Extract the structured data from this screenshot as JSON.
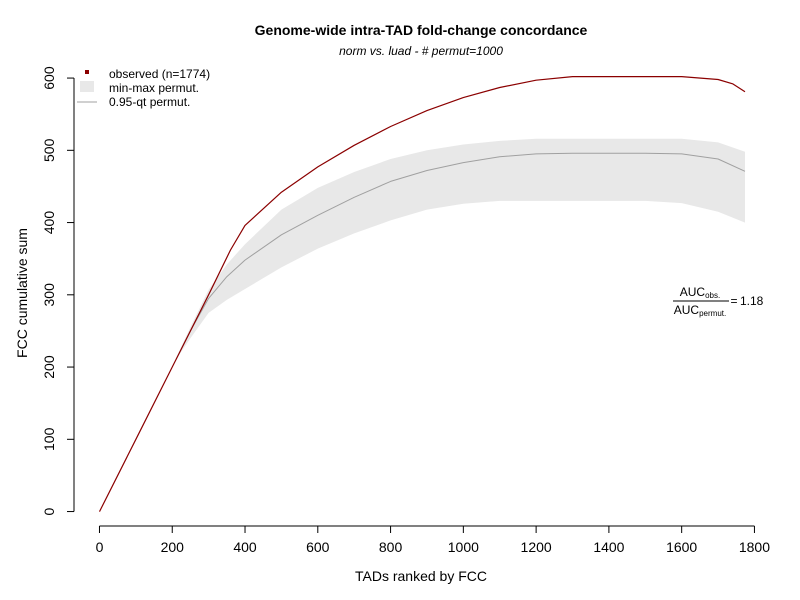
{
  "chart_data": {
    "type": "line",
    "title": "Genome-wide intra-TAD fold-change concordance",
    "subtitle": "norm vs. luad - # permut=1000",
    "xlabel": "TADs ranked by FCC",
    "ylabel": "FCC cumulative sum",
    "xlim": [
      -70,
      1840
    ],
    "ylim": [
      -20,
      625
    ],
    "xticks": [
      0,
      200,
      400,
      600,
      800,
      1000,
      1200,
      1400,
      1600,
      1800
    ],
    "yticks": [
      0,
      100,
      200,
      300,
      400,
      500,
      600
    ],
    "grid": false,
    "legend": {
      "position": "top-left",
      "entries": [
        "observed (n=1774)",
        "min-max permut.",
        "0.95-qt permut."
      ]
    },
    "colors": {
      "observed": "#8b0000",
      "band": "#e8e8e8",
      "quantile": "#a0a0a0"
    },
    "series": [
      {
        "name": "observed (n=1774)",
        "x": [
          0,
          100,
          200,
          300,
          360,
          400,
          500,
          600,
          700,
          800,
          900,
          1000,
          1100,
          1200,
          1300,
          1400,
          1500,
          1600,
          1700,
          1740,
          1774
        ],
        "y": [
          0,
          100,
          200,
          300,
          362,
          396,
          442,
          477,
          507,
          533,
          555,
          573,
          587,
          597,
          602,
          602,
          602,
          602,
          598,
          592,
          581
        ]
      },
      {
        "name": "0.95-qt permut.",
        "x": [
          210,
          250,
          300,
          350,
          400,
          500,
          600,
          700,
          800,
          900,
          1000,
          1100,
          1200,
          1300,
          1400,
          1500,
          1600,
          1700,
          1774
        ],
        "y": [
          210,
          250,
          295,
          325,
          348,
          383,
          410,
          435,
          457,
          472,
          483,
          491,
          495,
          496,
          496,
          496,
          495,
          488,
          471
        ]
      },
      {
        "name": "min-max permut.",
        "x": [
          210,
          250,
          300,
          350,
          400,
          500,
          600,
          700,
          800,
          900,
          1000,
          1100,
          1200,
          1300,
          1400,
          1500,
          1600,
          1700,
          1774
        ],
        "y_min": [
          210,
          240,
          275,
          293,
          308,
          338,
          364,
          385,
          403,
          418,
          426,
          430,
          430,
          430,
          430,
          430,
          427,
          415,
          400
        ],
        "y_max": [
          212,
          255,
          307,
          342,
          370,
          418,
          448,
          470,
          488,
          500,
          508,
          513,
          516,
          516,
          516,
          516,
          516,
          511,
          498
        ]
      }
    ],
    "annotation": {
      "numerator_main": "AUC",
      "numerator_sub": "obs.",
      "denominator_main": "AUC",
      "denominator_sub": "permut.",
      "equals": "=",
      "value": "1.18"
    }
  }
}
